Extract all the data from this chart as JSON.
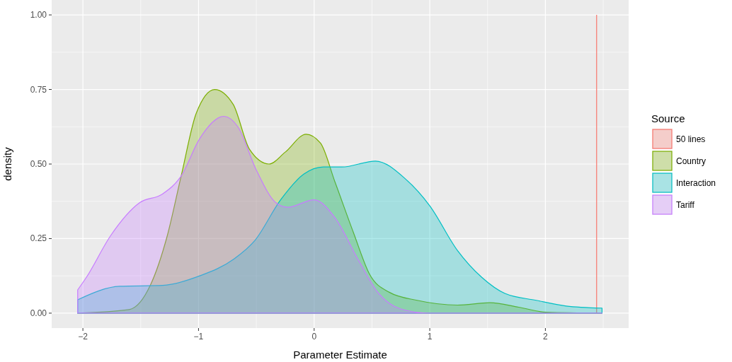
{
  "chart_data": {
    "type": "area",
    "xlabel": "Parameter Estimate",
    "ylabel": "density",
    "legend_title": "Source",
    "legend": "right",
    "grid": true,
    "xlim": [
      -2.27,
      2.72
    ],
    "ylim": [
      -0.05,
      1.05
    ],
    "xticks": [
      {
        "value": -2,
        "label": "−2"
      },
      {
        "value": -1,
        "label": "−1"
      },
      0,
      1,
      2
    ],
    "yticks": [
      {
        "value": 0,
        "label": "0.00"
      },
      {
        "value": 0.25,
        "label": "0.25"
      },
      {
        "value": 0.5,
        "label": "0.50"
      },
      {
        "value": 0.75,
        "label": "0.75"
      },
      {
        "value": 1,
        "label": "1.00"
      }
    ],
    "series": [
      {
        "name": "50 lines",
        "type": "line",
        "color": "#f8766d",
        "x": [
          2.443,
          2.443
        ],
        "values": [
          0,
          1
        ]
      },
      {
        "name": "Country",
        "color": "#7cae00",
        "x": [
          -2.045,
          -1.6,
          -1.415,
          -1.27,
          -1.15,
          -1.02,
          -0.86,
          -0.7,
          -0.56,
          -0.39,
          -0.25,
          -0.07,
          0.055,
          0.18,
          0.34,
          0.48,
          0.65,
          0.89,
          1.24,
          1.52,
          1.77,
          2.01,
          2.49
        ],
        "values": [
          0,
          0.012,
          0.095,
          0.26,
          0.46,
          0.67,
          0.75,
          0.7,
          0.55,
          0.5,
          0.54,
          0.6,
          0.57,
          0.44,
          0.27,
          0.13,
          0.07,
          0.043,
          0.027,
          0.035,
          0.02,
          0.003,
          0
        ]
      },
      {
        "name": "Interaction",
        "color": "#00bfc4",
        "x": [
          -2.045,
          -1.68,
          -1.31,
          -0.99,
          -0.7,
          -0.51,
          -0.29,
          -0.09,
          0.08,
          0.24,
          0.53,
          0.79,
          1.0,
          1.24,
          1.45,
          1.65,
          1.92,
          2.18,
          2.49
        ],
        "values": [
          0.045,
          0.09,
          0.093,
          0.125,
          0.18,
          0.245,
          0.38,
          0.466,
          0.49,
          0.49,
          0.51,
          0.45,
          0.36,
          0.21,
          0.12,
          0.066,
          0.043,
          0.024,
          0.017
        ]
      },
      {
        "name": "Tariff",
        "color": "#c77cff",
        "x": [
          -2.045,
          -1.97,
          -1.76,
          -1.51,
          -1.31,
          -1.15,
          -0.99,
          -0.78,
          -0.66,
          -0.5,
          -0.33,
          -0.23,
          0,
          0.18,
          0.38,
          0.55,
          0.75,
          1.0,
          2.49
        ],
        "values": [
          0.078,
          0.12,
          0.26,
          0.37,
          0.4,
          0.46,
          0.585,
          0.66,
          0.625,
          0.48,
          0.37,
          0.355,
          0.38,
          0.32,
          0.18,
          0.07,
          0.014,
          0,
          0
        ]
      }
    ]
  }
}
